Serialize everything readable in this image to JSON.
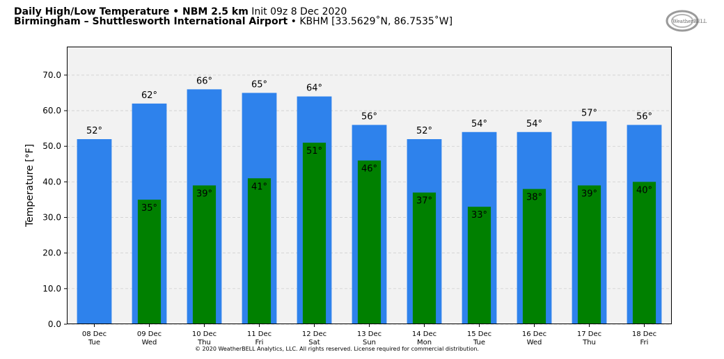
{
  "header": {
    "title_bold": "Daily High/Low Temperature • NBM 2.5 km",
    "init": "Init 09z 8 Dec 2020",
    "location_bold": "Birmingham – Shuttlesworth International Airport",
    "station": "• KBHM [33.5629˚N, 86.7535˚W]"
  },
  "logo": {
    "text": "WeatherBELL"
  },
  "copyright": "© 2020 WeatherBELL Analytics, LLC. All rights reserved. License required for commercial distribution.",
  "colors": {
    "high": "#2e82ec",
    "low": "#008000",
    "plot_bg": "#f2f2f2"
  },
  "chart_data": {
    "type": "bar",
    "title": "Daily High/Low Temperature • NBM 2.5 km",
    "ylabel": "Temperature [°F]",
    "xlabel": "",
    "ylim": [
      0,
      78
    ],
    "yticks": [
      "0.0",
      "10.0",
      "20.0",
      "30.0",
      "40.0",
      "50.0",
      "60.0",
      "70.0"
    ],
    "grid": true,
    "categories": [
      {
        "date": "08 Dec",
        "day": "Tue"
      },
      {
        "date": "09 Dec",
        "day": "Wed"
      },
      {
        "date": "10 Dec",
        "day": "Thu"
      },
      {
        "date": "11 Dec",
        "day": "Fri"
      },
      {
        "date": "12 Dec",
        "day": "Sat"
      },
      {
        "date": "13 Dec",
        "day": "Sun"
      },
      {
        "date": "14 Dec",
        "day": "Mon"
      },
      {
        "date": "15 Dec",
        "day": "Tue"
      },
      {
        "date": "16 Dec",
        "day": "Wed"
      },
      {
        "date": "17 Dec",
        "day": "Thu"
      },
      {
        "date": "18 Dec",
        "day": "Fri"
      }
    ],
    "series": [
      {
        "key": "high",
        "values": [
          52,
          62,
          66,
          65,
          64,
          56,
          52,
          54,
          54,
          57,
          56
        ],
        "labels": [
          "52°",
          "62°",
          "66°",
          "65°",
          "64°",
          "56°",
          "52°",
          "54°",
          "54°",
          "57°",
          "56°"
        ]
      },
      {
        "key": "low",
        "values": [
          null,
          35,
          39,
          41,
          51,
          46,
          37,
          33,
          38,
          39,
          40
        ],
        "labels": [
          null,
          "35°",
          "39°",
          "41°",
          "51°",
          "46°",
          "37°",
          "33°",
          "38°",
          "39°",
          "40°"
        ]
      }
    ]
  }
}
